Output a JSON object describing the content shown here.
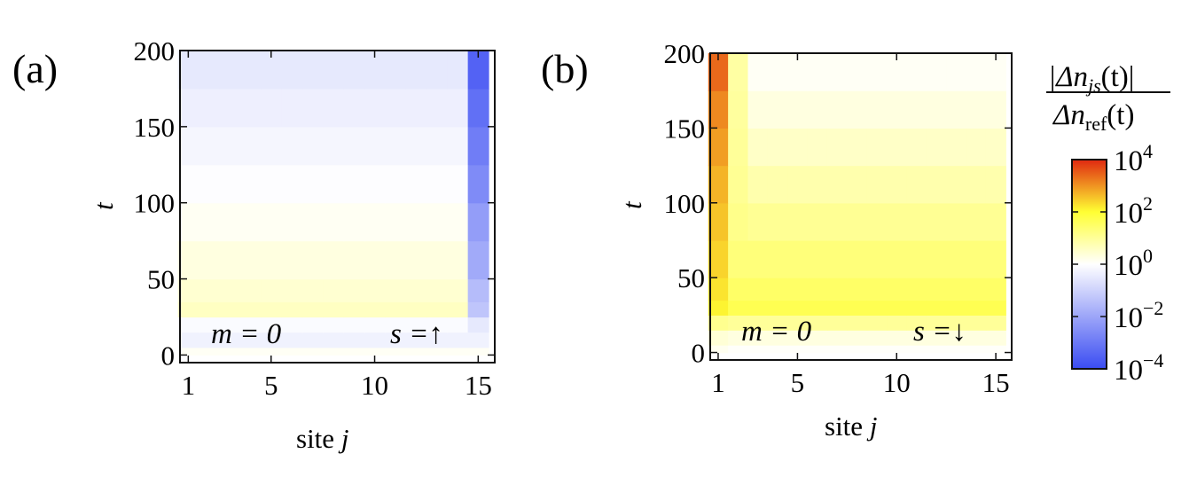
{
  "chart_data": [
    {
      "type": "heatmap",
      "panel_label": "(a)",
      "xlabel_text": "site",
      "xlabel_var": "j",
      "ylabel": "t",
      "x_range": [
        0.6,
        15.8
      ],
      "y_range": [
        -5,
        200
      ],
      "xticks": [
        1,
        5,
        10,
        15
      ],
      "yticks": [
        0,
        50,
        100,
        150,
        200
      ],
      "annotation_left": "m = 0",
      "annotation_right": "s =↑",
      "rows": [
        {
          "t0": 0,
          "t1": 5,
          "bulk": 0.1,
          "edge": 0.1
        },
        {
          "t0": 5,
          "t1": 15,
          "bulk": -0.3,
          "edge": -0.3
        },
        {
          "t0": 15,
          "t1": 25,
          "bulk": -0.1,
          "edge": -0.5
        },
        {
          "t0": 25,
          "t1": 35,
          "bulk": 0.6,
          "edge": -1.3
        },
        {
          "t0": 35,
          "t1": 50,
          "bulk": 0.45,
          "edge": -1.5
        },
        {
          "t0": 50,
          "t1": 75,
          "bulk": 0.3,
          "edge": -1.9
        },
        {
          "t0": 75,
          "t1": 100,
          "bulk": 0.12,
          "edge": -2.2
        },
        {
          "t0": 100,
          "t1": 125,
          "bulk": -0.05,
          "edge": -2.6
        },
        {
          "t0": 125,
          "t1": 150,
          "bulk": -0.2,
          "edge": -2.9
        },
        {
          "t0": 150,
          "t1": 175,
          "bulk": -0.35,
          "edge": -3.2
        },
        {
          "t0": 175,
          "t1": 200,
          "bulk": -0.5,
          "edge": -3.5
        }
      ]
    },
    {
      "type": "heatmap",
      "panel_label": "(b)",
      "xlabel_text": "site",
      "xlabel_var": "j",
      "ylabel": "t",
      "x_range": [
        0.6,
        15.8
      ],
      "y_range": [
        -5,
        200
      ],
      "xticks": [
        1,
        5,
        10,
        15
      ],
      "yticks": [
        0,
        50,
        100,
        150,
        200
      ],
      "annotation_left": "m = 0",
      "annotation_right": "s =↓",
      "rows": [
        {
          "t0": 0,
          "t1": 5,
          "site1": 0.15,
          "site2": 0.05,
          "bulk": 0.05
        },
        {
          "t0": 5,
          "t1": 15,
          "site1": 0.4,
          "site2": 0.3,
          "bulk": 0.3
        },
        {
          "t0": 15,
          "t1": 25,
          "site1": 1.1,
          "site2": 1.0,
          "bulk": 1.0
        },
        {
          "t0": 25,
          "t1": 35,
          "site1": 2.1,
          "site2": 1.7,
          "bulk": 1.7
        },
        {
          "t0": 35,
          "t1": 50,
          "site1": 2.25,
          "site2": 1.5,
          "bulk": 1.5
        },
        {
          "t0": 50,
          "t1": 75,
          "site1": 2.4,
          "site2": 1.3,
          "bulk": 1.3
        },
        {
          "t0": 75,
          "t1": 100,
          "site1": 2.55,
          "site2": 1.15,
          "bulk": 1.05
        },
        {
          "t0": 100,
          "t1": 125,
          "site1": 2.7,
          "site2": 1.05,
          "bulk": 0.8
        },
        {
          "t0": 125,
          "t1": 150,
          "site1": 2.9,
          "site2": 1.0,
          "bulk": 0.55
        },
        {
          "t0": 150,
          "t1": 175,
          "site1": 3.1,
          "site2": 0.95,
          "bulk": 0.3
        },
        {
          "t0": 175,
          "t1": 200,
          "site1": 3.4,
          "site2": 0.9,
          "bulk": 0.1
        }
      ]
    }
  ],
  "colorbar": {
    "label_numerator": "|Δn",
    "label_numerator_sub": "js",
    "label_numerator_tail": "(t)|",
    "label_denominator": "Δn",
    "label_denominator_sub": "ref",
    "label_denominator_tail": "(t)",
    "scale": "log",
    "ticks": [
      {
        "base": "10",
        "exp": "4",
        "value": 4
      },
      {
        "base": "10",
        "exp": "2",
        "value": 2
      },
      {
        "base": "10",
        "exp": "0",
        "value": 0
      },
      {
        "base": "10",
        "exp": "−2",
        "value": -2
      },
      {
        "base": "10",
        "exp": "−4",
        "value": -4
      }
    ],
    "colors": [
      "#3a4cf2",
      "#ffffff",
      "#ffff33",
      "#e02810"
    ]
  }
}
